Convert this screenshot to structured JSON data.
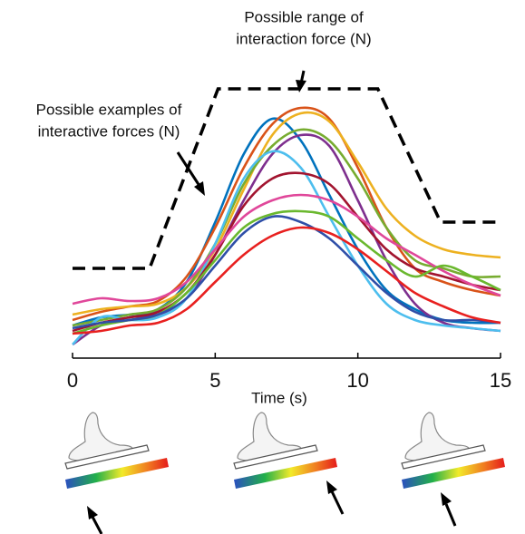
{
  "chart_data": {
    "type": "line",
    "xlabel": "Time (s)",
    "annotations": [
      {
        "lines": [
          "Possible range of",
          "interaction force (N)"
        ]
      },
      {
        "lines": [
          "Possible examples of",
          "interactive forces (N)"
        ]
      }
    ],
    "xlim": [
      0,
      15
    ],
    "ylim": [
      0,
      100
    ],
    "xticks": [
      0,
      5,
      10,
      15
    ],
    "x": [
      0,
      1,
      2,
      3,
      4,
      5,
      6,
      7,
      8,
      9,
      10,
      11,
      12,
      13,
      14,
      15
    ],
    "envelope": {
      "color": "#000000",
      "x": [
        0,
        2.7,
        5.1,
        10.7,
        12.9,
        15
      ],
      "values": [
        33,
        33,
        99,
        99,
        50,
        50
      ]
    },
    "series": [
      {
        "color": "#0072bd",
        "values": [
          12,
          15,
          16,
          18,
          28,
          50,
          75,
          88,
          80,
          60,
          40,
          25,
          18,
          14,
          13,
          13
        ]
      },
      {
        "color": "#d95319",
        "values": [
          14,
          17,
          19,
          21,
          30,
          48,
          70,
          86,
          92,
          88,
          70,
          48,
          33,
          28,
          25,
          23
        ]
      },
      {
        "color": "#edb120",
        "values": [
          16,
          18,
          19,
          20,
          26,
          40,
          62,
          82,
          90,
          87,
          72,
          55,
          45,
          40,
          38,
          37
        ]
      },
      {
        "color": "#77ac30",
        "values": [
          12,
          14,
          16,
          18,
          26,
          42,
          64,
          78,
          84,
          80,
          66,
          48,
          36,
          33,
          30,
          30
        ]
      },
      {
        "color": "#7e2f8e",
        "values": [
          5,
          12,
          15,
          16,
          22,
          38,
          58,
          75,
          82,
          78,
          58,
          36,
          20,
          13,
          11,
          10
        ]
      },
      {
        "color": "#4dbeee",
        "values": [
          5,
          15,
          14,
          15,
          22,
          42,
          66,
          76,
          70,
          52,
          34,
          20,
          14,
          12,
          11,
          10
        ]
      },
      {
        "color": "#a2142f",
        "values": [
          10,
          13,
          15,
          17,
          24,
          38,
          56,
          66,
          68,
          64,
          52,
          40,
          33,
          30,
          27,
          25
        ]
      },
      {
        "color": "#e0479a",
        "values": [
          20,
          22,
          21,
          22,
          28,
          40,
          52,
          58,
          60,
          58,
          52,
          44,
          38,
          32,
          27,
          23
        ]
      },
      {
        "color": "#6ab82e",
        "values": [
          9,
          12,
          14,
          16,
          24,
          36,
          48,
          53,
          54,
          52,
          44,
          36,
          30,
          34,
          30,
          25
        ]
      },
      {
        "color": "#2f4fa8",
        "values": [
          11,
          13,
          14,
          16,
          22,
          34,
          46,
          52,
          50,
          44,
          34,
          24,
          17,
          14,
          14,
          13
        ]
      },
      {
        "color": "#e8201f",
        "values": [
          9,
          10,
          12,
          13,
          18,
          28,
          38,
          45,
          48,
          46,
          40,
          32,
          24,
          19,
          15,
          13
        ]
      }
    ]
  }
}
